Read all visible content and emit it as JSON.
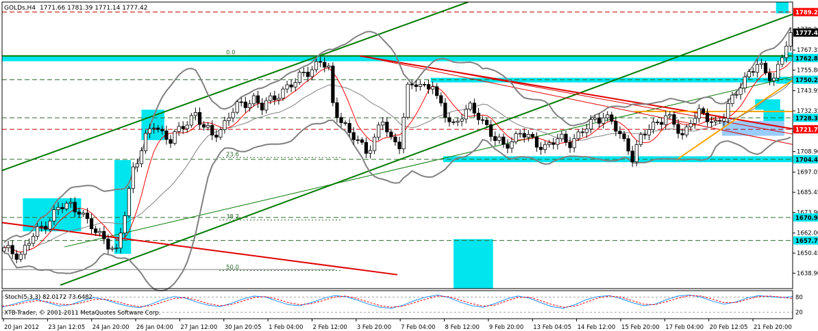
{
  "header": {
    "symbol": "GOLDs,H4",
    "ohlc": "1771.66 1781.39 1771.14 1777.42"
  },
  "indicator": {
    "label": "Stoch(5,3,3) 82.0172 73.6482",
    "levels": [
      "80",
      "20"
    ]
  },
  "copyright": "XTB-Trader, © 2001-2011 MetaQuotes Software Corp.",
  "chart_data": {
    "type": "candlestick",
    "ylim": [
      1630.0,
      1795.0
    ],
    "price_ticks": [
      1779.2,
      1767.35,
      1755.8,
      1743.95,
      1732.35,
      1720.5,
      1708.9,
      1697.05,
      1685.45,
      1673.9,
      1662.0,
      1650.45,
      1638.9
    ],
    "price_tick_labels": [
      "1779.20",
      "1767.35",
      "1755.80",
      "1743.95",
      "1732.35",
      "1720.50",
      "1708.90",
      "1697.05",
      "1685.45",
      "1673.90",
      "1662.00",
      "1650.45",
      "1638.90"
    ],
    "time_labels": [
      "20 Jan 2012",
      "23 Jan 12:05",
      "24 Jan 20:00",
      "26 Jan 04:00",
      "27 Jan 12:00",
      "30 Jan 20:05",
      "1 Feb 04:00",
      "2 Feb 12:00",
      "3 Feb 20:00",
      "7 Feb 04:00",
      "8 Feb 12:00",
      "9 Feb 20:00",
      "13 Feb 04:05",
      "14 Feb 12:00",
      "15 Feb 20:00",
      "17 Feb 04:00",
      "20 Feb 12:05",
      "21 Feb 20:00"
    ],
    "level_tags": [
      {
        "value": 1789.22,
        "text": "1789.22",
        "bg": "#ff0000",
        "fg": "#ffffff"
      },
      {
        "value": 1777.42,
        "text": "1777.42",
        "bg": "#000000",
        "fg": "#ffffff"
      },
      {
        "value": 1762.8,
        "text": "1762.80",
        "bg": "#00e5ee",
        "fg": "#000000"
      },
      {
        "value": 1750.27,
        "text": "1750.27",
        "bg": "#00e5ee",
        "fg": "#000000"
      },
      {
        "value": 1728.35,
        "text": "1728.35",
        "bg": "#00e5ee",
        "fg": "#000000"
      },
      {
        "value": 1721.72,
        "text": "1721.72",
        "bg": "#ff0000",
        "fg": "#ffffff"
      },
      {
        "value": 1704.43,
        "text": "1704.43",
        "bg": "#00e5ee",
        "fg": "#000000"
      },
      {
        "value": 1670.97,
        "text": "1670.97",
        "bg": "#00e5ee",
        "fg": "#000000"
      },
      {
        "value": 1657.7,
        "text": "1657.70",
        "bg": "#00e5ee",
        "fg": "#000000"
      }
    ],
    "fib_levels": [
      {
        "label": "0.0",
        "value": 1764.0
      },
      {
        "label": "23.6",
        "value": 1705.5
      },
      {
        "label": "38.2",
        "value": 1669.5
      },
      {
        "label": "50.0",
        "value": 1640.5
      }
    ],
    "dashed_levels": [
      1789.22,
      1750.27,
      1728.35,
      1721.72,
      1704.43,
      1670.97,
      1657.7
    ],
    "colors": {
      "bull": "#ffffff",
      "bear": "#000000",
      "channel": "#007a00",
      "resistance": "#e00000",
      "bands": "#808080",
      "ma": "#ff0000",
      "zone": "#00e5ee",
      "zone_blue": "#99ccff",
      "trend_orange": "#ffa500",
      "stoch_main": "#1e90ff",
      "stoch_signal": "#ff0000"
    },
    "series": [
      {
        "name": "OHLC",
        "waypoints": [
          [
            0,
            1652
          ],
          [
            4,
            1650
          ],
          [
            7,
            1660
          ],
          [
            10,
            1668
          ],
          [
            13,
            1676
          ],
          [
            16,
            1678
          ],
          [
            18,
            1676
          ],
          [
            20,
            1668
          ],
          [
            22,
            1662
          ],
          [
            24,
            1660
          ],
          [
            26,
            1653
          ],
          [
            27,
            1650
          ],
          [
            29,
            1673
          ],
          [
            31,
            1700
          ],
          [
            34,
            1716
          ],
          [
            36,
            1724
          ],
          [
            38,
            1720
          ],
          [
            40,
            1716
          ],
          [
            42,
            1720
          ],
          [
            44,
            1726
          ],
          [
            46,
            1732
          ],
          [
            48,
            1722
          ],
          [
            50,
            1718
          ],
          [
            52,
            1722
          ],
          [
            54,
            1730
          ],
          [
            56,
            1734
          ],
          [
            58,
            1737
          ],
          [
            60,
            1740
          ],
          [
            62,
            1734
          ],
          [
            64,
            1738
          ],
          [
            66,
            1743
          ],
          [
            68,
            1746
          ],
          [
            70,
            1748
          ],
          [
            72,
            1755
          ],
          [
            74,
            1757
          ],
          [
            76,
            1760
          ],
          [
            78,
            1756
          ],
          [
            79,
            1736
          ],
          [
            81,
            1728
          ],
          [
            83,
            1718
          ],
          [
            85,
            1715
          ],
          [
            87,
            1710
          ],
          [
            89,
            1716
          ],
          [
            91,
            1726
          ],
          [
            93,
            1716
          ],
          [
            95,
            1714
          ],
          [
            97,
            1744
          ],
          [
            99,
            1748
          ],
          [
            101,
            1747
          ],
          [
            103,
            1748
          ],
          [
            104,
            1738
          ],
          [
            106,
            1730
          ],
          [
            108,
            1725
          ],
          [
            110,
            1730
          ],
          [
            112,
            1733
          ],
          [
            114,
            1730
          ],
          [
            116,
            1724
          ],
          [
            118,
            1715
          ],
          [
            120,
            1712
          ],
          [
            122,
            1716
          ],
          [
            124,
            1720
          ],
          [
            126,
            1716
          ],
          [
            128,
            1714
          ],
          [
            130,
            1712
          ],
          [
            132,
            1714
          ],
          [
            134,
            1716
          ],
          [
            136,
            1715
          ],
          [
            138,
            1718
          ],
          [
            140,
            1722
          ],
          [
            142,
            1728
          ],
          [
            144,
            1730
          ],
          [
            146,
            1725
          ],
          [
            148,
            1718
          ],
          [
            150,
            1712
          ],
          [
            151,
            1706
          ],
          [
            153,
            1716
          ],
          [
            155,
            1722
          ],
          [
            157,
            1727
          ],
          [
            159,
            1729
          ],
          [
            161,
            1724
          ],
          [
            163,
            1718
          ],
          [
            165,
            1728
          ],
          [
            167,
            1730
          ],
          [
            169,
            1728
          ],
          [
            171,
            1726
          ],
          [
            173,
            1730
          ],
          [
            175,
            1738
          ],
          [
            177,
            1748
          ],
          [
            179,
            1755
          ],
          [
            181,
            1758
          ],
          [
            183,
            1754
          ],
          [
            185,
            1752
          ],
          [
            187,
            1764
          ],
          [
            188,
            1770
          ],
          [
            189,
            1777.42
          ]
        ]
      },
      {
        "name": "Stoch main",
        "values": [
          40,
          52,
          65,
          72,
          58,
          45,
          50,
          66,
          78,
          70,
          55,
          44,
          38,
          52,
          70,
          82,
          76,
          60,
          48,
          42,
          55,
          72,
          84,
          80,
          64,
          50,
          46,
          58,
          74,
          86,
          82,
          68,
          52,
          40,
          36,
          48,
          66,
          80,
          88,
          78,
          60,
          46,
          40,
          54,
          72,
          84,
          76,
          58,
          42,
          36,
          50,
          70,
          82,
          86,
          74,
          58,
          46,
          52,
          70,
          84,
          88,
          80,
          64,
          52,
          60,
          76,
          86,
          82,
          78,
          82
        ]
      },
      {
        "name": "Stoch signal",
        "values": [
          44,
          48,
          58,
          66,
          62,
          52,
          50,
          58,
          70,
          72,
          62,
          50,
          42,
          46,
          60,
          74,
          78,
          68,
          54,
          46,
          50,
          64,
          78,
          82,
          72,
          58,
          50,
          54,
          66,
          80,
          84,
          74,
          60,
          46,
          40,
          44,
          58,
          72,
          84,
          82,
          68,
          54,
          44,
          48,
          64,
          78,
          80,
          66,
          50,
          40,
          44,
          60,
          76,
          84,
          80,
          66,
          52,
          50,
          62,
          76,
          86,
          84,
          72,
          58,
          58,
          70,
          82,
          84,
          80,
          74
        ]
      }
    ],
    "zones": [
      {
        "x": [
          0.0,
          190.0
        ],
        "y": [
          1760.9,
          1764.3
        ],
        "color": "zone"
      },
      {
        "x": [
          103.0,
          190.0
        ],
        "y": [
          1748.7,
          1751.4
        ],
        "color": "zone"
      },
      {
        "x": [
          106.0,
          190.0
        ],
        "y": [
          1702.8,
          1706.2
        ],
        "color": "zone"
      },
      {
        "x": [
          186.0,
          189.0
        ],
        "y": [
          1788.5,
          1795.0
        ],
        "color": "zone"
      },
      {
        "x": [
          5.0,
          19.0
        ],
        "y": [
          1663.0,
          1682.0
        ],
        "color": "zone"
      },
      {
        "x": [
          27.0,
          31.0
        ],
        "y": [
          1650.0,
          1704.0
        ],
        "color": "zone"
      },
      {
        "x": [
          33.5,
          39.0
        ],
        "y": [
          1715.5,
          1733.0
        ],
        "color": "zone"
      },
      {
        "x": [
          108.5,
          118.0
        ],
        "y": [
          1630.0,
          1658.5
        ],
        "color": "zone"
      },
      {
        "x": [
          173.0,
          188.0
        ],
        "y": [
          1718.0,
          1726.5
        ],
        "color": "zone_blue"
      },
      {
        "x": [
          183.0,
          188.0
        ],
        "y": [
          1726.5,
          1733.0
        ],
        "color": "zone"
      },
      {
        "x": [
          181.0,
          187.0
        ],
        "y": [
          1733.0,
          1739.0
        ],
        "color": "zone"
      },
      {
        "x": [
          186.0,
          189.0
        ],
        "y": [
          1748.0,
          1752.0
        ],
        "color": "zone"
      },
      {
        "x": [
          188.0,
          190.0
        ],
        "y": [
          1762.0,
          1766.0
        ],
        "color": "zone"
      }
    ],
    "trendlines": [
      {
        "from": [
          0.0,
          1698.0
        ],
        "to": [
          112.0,
          1795.0
        ],
        "color": "channel",
        "width": 2
      },
      {
        "from": [
          14.0,
          1632.0
        ],
        "to": [
          190.0,
          1788.0
        ],
        "color": "channel",
        "width": 2
      },
      {
        "from": [
          15.0,
          1654.0
        ],
        "to": [
          190.0,
          1752.0
        ],
        "color": "channel",
        "width": 1
      },
      {
        "from": [
          0.0,
          1764.0
        ],
        "to": [
          190.0,
          1764.0
        ],
        "color": "channel",
        "width": 2
      },
      {
        "from": [
          86.0,
          1764.0
        ],
        "to": [
          190.0,
          1722.0
        ],
        "color": "resistance",
        "width": 2
      },
      {
        "from": [
          86.0,
          1764.0
        ],
        "to": [
          190.0,
          1713.0
        ],
        "color": "resistance",
        "width": 1
      },
      {
        "from": [
          108.0,
          1755.0
        ],
        "to": [
          190.0,
          1719.0
        ],
        "color": "resistance",
        "width": 1
      },
      {
        "from": [
          0.0,
          1668.0
        ],
        "to": [
          95.0,
          1638.0
        ],
        "color": "resistance",
        "width": 2
      },
      {
        "from": [
          152.0,
          1732.0
        ],
        "to": [
          190.0,
          1732.0
        ],
        "color": "trend_orange",
        "width": 2
      },
      {
        "from": [
          162.0,
          1704.0
        ],
        "to": [
          190.0,
          1750.0
        ],
        "color": "trend_orange",
        "width": 2
      },
      {
        "from": [
          0.0,
          1641.0
        ],
        "to": [
          80.0,
          1641.0
        ],
        "color": "bands",
        "width": 1
      }
    ]
  }
}
